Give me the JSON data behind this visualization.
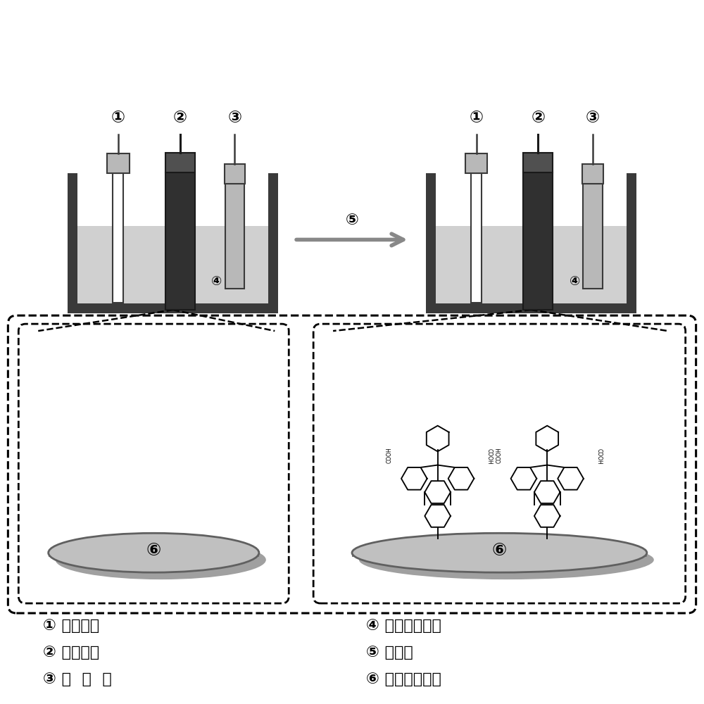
{
  "bg_color": "#ffffff",
  "dark_gray": "#3a3a3a",
  "mid_gray": "#808080",
  "light_gray": "#b8b8b8",
  "liq_gray": "#d0d0d0",
  "shadow_gray": "#909090",
  "disk_gray": "#c0c0c0",
  "labels_left": [
    "① 参比电极",
    "② 工作电极",
    "③ 对  电  极"
  ],
  "labels_right": [
    "④ 重氮盐混合液",
    "⑤ 电还原",
    "⑥ 工作电极表面"
  ]
}
